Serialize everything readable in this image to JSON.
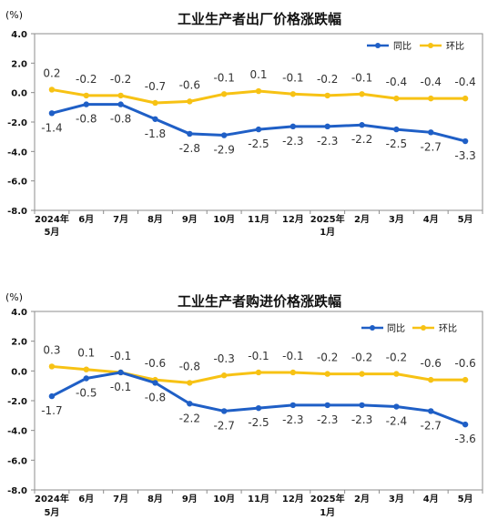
{
  "chart_data": [
    {
      "type": "line",
      "title": "工业生产者出厂价格涨跌幅",
      "unit": "(%)",
      "categories": [
        "2024年",
        "6月",
        "7月",
        "8月",
        "9月",
        "10月",
        "11月",
        "12月",
        "2025年",
        "2月",
        "3月",
        "4月",
        "5月"
      ],
      "categories_line2": [
        "5月",
        "",
        "",
        "",
        "",
        "",
        "",
        "",
        "1月",
        "",
        "",
        "",
        ""
      ],
      "ylim": [
        -8.0,
        4.0
      ],
      "yticks": [
        "4.0",
        "2.0",
        "0.0",
        "-2.0",
        "-4.0",
        "-6.0",
        "-8.0"
      ],
      "grid": false,
      "legend_position": "top-right",
      "series": [
        {
          "name": "同比",
          "color": "#1f5fc6",
          "values": [
            -1.4,
            -0.8,
            -0.8,
            -1.8,
            -2.8,
            -2.9,
            -2.5,
            -2.3,
            -2.3,
            -2.2,
            -2.5,
            -2.7,
            -3.3
          ],
          "labels": [
            "-1.4",
            "-0.8",
            "-0.8",
            "-1.8",
            "-2.8",
            "-2.9",
            "-2.5",
            "-2.3",
            "-2.3",
            "-2.2",
            "-2.5",
            "-2.7",
            "-3.3"
          ]
        },
        {
          "name": "环比",
          "color": "#f7c214",
          "values": [
            0.2,
            -0.2,
            -0.2,
            -0.7,
            -0.6,
            -0.1,
            0.1,
            -0.1,
            -0.2,
            -0.1,
            -0.4,
            -0.4,
            -0.4
          ],
          "labels": [
            "0.2",
            "-0.2",
            "-0.2",
            "-0.7",
            "-0.6",
            "-0.1",
            "0.1",
            "-0.1",
            "-0.2",
            "-0.1",
            "-0.4",
            "-0.4",
            "-0.4"
          ]
        }
      ]
    },
    {
      "type": "line",
      "title": "工业生产者购进价格涨跌幅",
      "unit": "(%)",
      "categories": [
        "2024年",
        "6月",
        "7月",
        "8月",
        "9月",
        "10月",
        "11月",
        "12月",
        "2025年",
        "2月",
        "3月",
        "4月",
        "5月"
      ],
      "categories_line2": [
        "5月",
        "",
        "",
        "",
        "",
        "",
        "",
        "",
        "1月",
        "",
        "",
        "",
        ""
      ],
      "ylim": [
        -8.0,
        4.0
      ],
      "yticks": [
        "4.0",
        "2.0",
        "0.0",
        "-2.0",
        "-4.0",
        "-6.0",
        "-8.0"
      ],
      "grid": false,
      "legend_position": "top-right",
      "series": [
        {
          "name": "同比",
          "color": "#1f5fc6",
          "values": [
            -1.7,
            -0.5,
            -0.1,
            -0.8,
            -2.2,
            -2.7,
            -2.5,
            -2.3,
            -2.3,
            -2.3,
            -2.4,
            -2.7,
            -3.6
          ],
          "labels": [
            "-1.7",
            "-0.5",
            "-0.1",
            "-0.8",
            "-2.2",
            "-2.7",
            "-2.5",
            "-2.3",
            "-2.3",
            "-2.3",
            "-2.4",
            "-2.7",
            "-3.6"
          ]
        },
        {
          "name": "环比",
          "color": "#f7c214",
          "values": [
            0.3,
            0.1,
            -0.1,
            -0.6,
            -0.8,
            -0.3,
            -0.1,
            -0.1,
            -0.2,
            -0.2,
            -0.2,
            -0.6,
            -0.6
          ],
          "labels": [
            "0.3",
            "0.1",
            "-0.1",
            "-0.6",
            "-0.8",
            "-0.3",
            "-0.1",
            "-0.1",
            "-0.2",
            "-0.2",
            "-0.2",
            "-0.6",
            "-0.6"
          ]
        }
      ]
    }
  ]
}
